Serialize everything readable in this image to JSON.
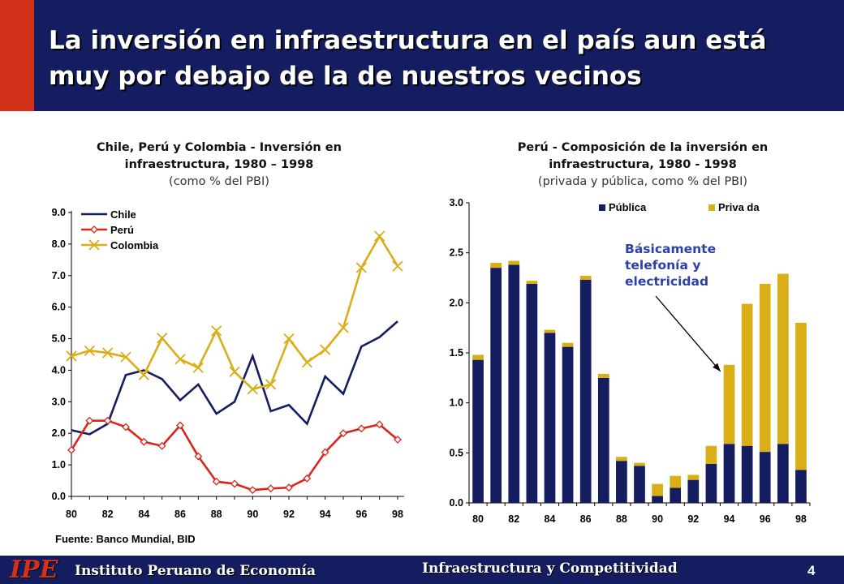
{
  "slide": {
    "title": "La inversión en infraestructura en el país aun está\nmuy por debajo de la de nuestros vecinos",
    "source": "Fuente: Banco Mundial, BID",
    "footer_logo": "IPE",
    "footer_org": "Instituto Peruano de Economía",
    "footer_topic": "Infraestructura y Competitividad",
    "page_number": "4",
    "colors": {
      "header": "#141d5f",
      "accent": "#d2311a",
      "publica": "#141d5f",
      "privada": "#d9ae16"
    }
  },
  "chart_data": [
    {
      "type": "line",
      "title": "Chile, Perú y Colombia - Inversión en infraestructura, 1980 – 1998",
      "subtitle": "(como % del PBI)",
      "x": [
        1980,
        1981,
        1982,
        1983,
        1984,
        1985,
        1986,
        1987,
        1988,
        1989,
        1990,
        1991,
        1992,
        1993,
        1994,
        1995,
        1996,
        1997,
        1998
      ],
      "x_tick_labels": [
        "80",
        "82",
        "84",
        "86",
        "88",
        "90",
        "92",
        "94",
        "96",
        "98"
      ],
      "y_tick_labels": [
        "0.0",
        "1.0",
        "2.0",
        "3.0",
        "4.0",
        "5.0",
        "6.0",
        "7.0",
        "8.0",
        "9.0"
      ],
      "ylim": [
        0,
        9
      ],
      "legend_position": "top-left",
      "series": [
        {
          "name": "Chile",
          "color": "#141d5f",
          "marker": "none",
          "values": [
            2.1,
            1.97,
            2.3,
            3.85,
            4.0,
            3.72,
            3.05,
            3.55,
            2.62,
            3.0,
            4.45,
            2.7,
            2.9,
            2.3,
            3.8,
            3.25,
            4.75,
            5.05,
            5.55
          ]
        },
        {
          "name": "Perú",
          "color": "#d9251b",
          "marker": "diamond",
          "values": [
            1.47,
            2.4,
            2.4,
            2.2,
            1.73,
            1.6,
            2.25,
            1.27,
            0.47,
            0.4,
            0.2,
            0.25,
            0.28,
            0.57,
            1.4,
            2.0,
            2.15,
            2.28,
            1.8
          ]
        },
        {
          "name": "Colombia",
          "color": "#d9ae16",
          "marker": "x",
          "values": [
            4.45,
            4.62,
            4.55,
            4.42,
            3.85,
            5.02,
            4.35,
            4.08,
            5.25,
            3.95,
            3.4,
            3.55,
            5.0,
            4.25,
            4.65,
            5.35,
            7.25,
            8.25,
            7.3
          ]
        }
      ]
    },
    {
      "type": "bar",
      "stacked": true,
      "title": "Perú - Composición de la inversión en infraestructura, 1980 - 1998",
      "subtitle": "(privada y pública, como % del PBI)",
      "categories": [
        1980,
        1981,
        1982,
        1983,
        1984,
        1985,
        1986,
        1987,
        1988,
        1989,
        1990,
        1991,
        1992,
        1993,
        1994,
        1995,
        1996,
        1997,
        1998
      ],
      "x_tick_labels": [
        "80",
        "82",
        "84",
        "86",
        "88",
        "90",
        "92",
        "94",
        "96",
        "98"
      ],
      "y_tick_labels": [
        "0.0",
        "0.5",
        "1.0",
        "1.5",
        "2.0",
        "2.5",
        "3.0"
      ],
      "ylim": [
        0,
        3.0
      ],
      "legend_position": "top",
      "series": [
        {
          "name": "Pública",
          "color": "#141d5f",
          "values": [
            1.43,
            2.35,
            2.38,
            2.19,
            1.7,
            1.56,
            2.23,
            1.25,
            0.42,
            0.37,
            0.07,
            0.15,
            0.23,
            0.39,
            0.59,
            0.57,
            0.51,
            0.59,
            0.33
          ]
        },
        {
          "name": "Priva da",
          "color": "#d9ae16",
          "values": [
            0.05,
            0.05,
            0.04,
            0.03,
            0.03,
            0.04,
            0.04,
            0.04,
            0.04,
            0.03,
            0.12,
            0.12,
            0.05,
            0.18,
            0.79,
            1.42,
            1.68,
            1.7,
            1.47
          ]
        }
      ],
      "annotation": {
        "lines": [
          "Básicamente",
          "telefonía y",
          "electricidad"
        ],
        "points_to_category": 1994
      }
    }
  ]
}
